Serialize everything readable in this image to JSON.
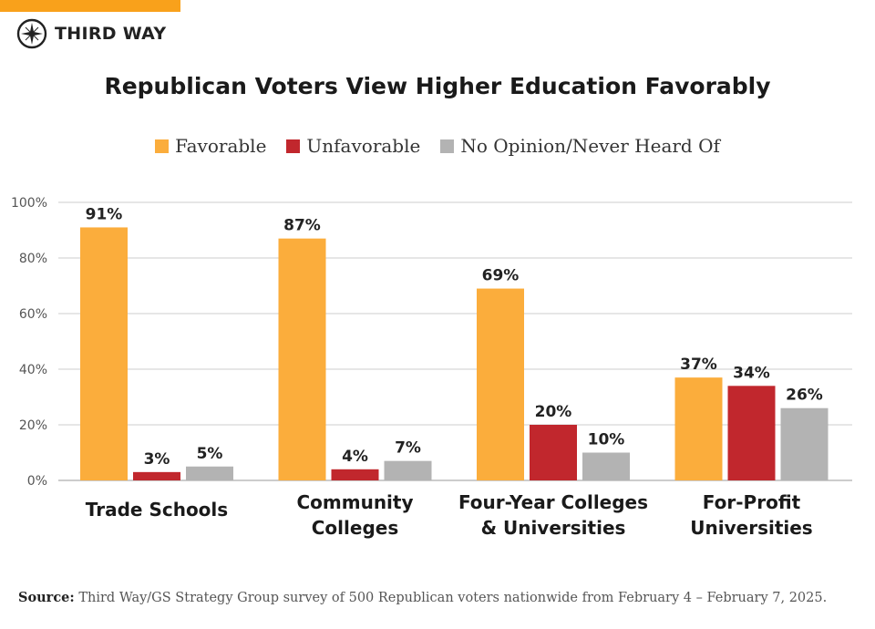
{
  "brand": {
    "name": "THIRD WAY",
    "accent": "#f9a11b"
  },
  "chart_data": {
    "type": "bar",
    "title": "Republican Voters View Higher Education Favorably",
    "categories": [
      [
        "Trade Schools"
      ],
      [
        "Community",
        "Colleges"
      ],
      [
        "Four-Year Colleges",
        "& Universities"
      ],
      [
        "For-Profit",
        "Universities"
      ]
    ],
    "series": [
      {
        "name": "Favorable",
        "color": "#fbad3c",
        "values": [
          91,
          87,
          69,
          37
        ]
      },
      {
        "name": "Unfavorable",
        "color": "#c1272d",
        "values": [
          3,
          4,
          20,
          34
        ]
      },
      {
        "name": "No Opinion/Never Heard Of",
        "color": "#b3b3b3",
        "values": [
          5,
          7,
          10,
          26
        ]
      }
    ],
    "ylim": [
      0,
      100
    ],
    "yticks": [
      "0%",
      "20%",
      "40%",
      "60%",
      "80%",
      "100%"
    ],
    "grid": true,
    "legend_placement": "top"
  },
  "source": {
    "label": "Source:",
    "text": "Third Way/GS Strategy Group survey of 500 Republican voters nationwide from February 4 – February 7, 2025."
  }
}
